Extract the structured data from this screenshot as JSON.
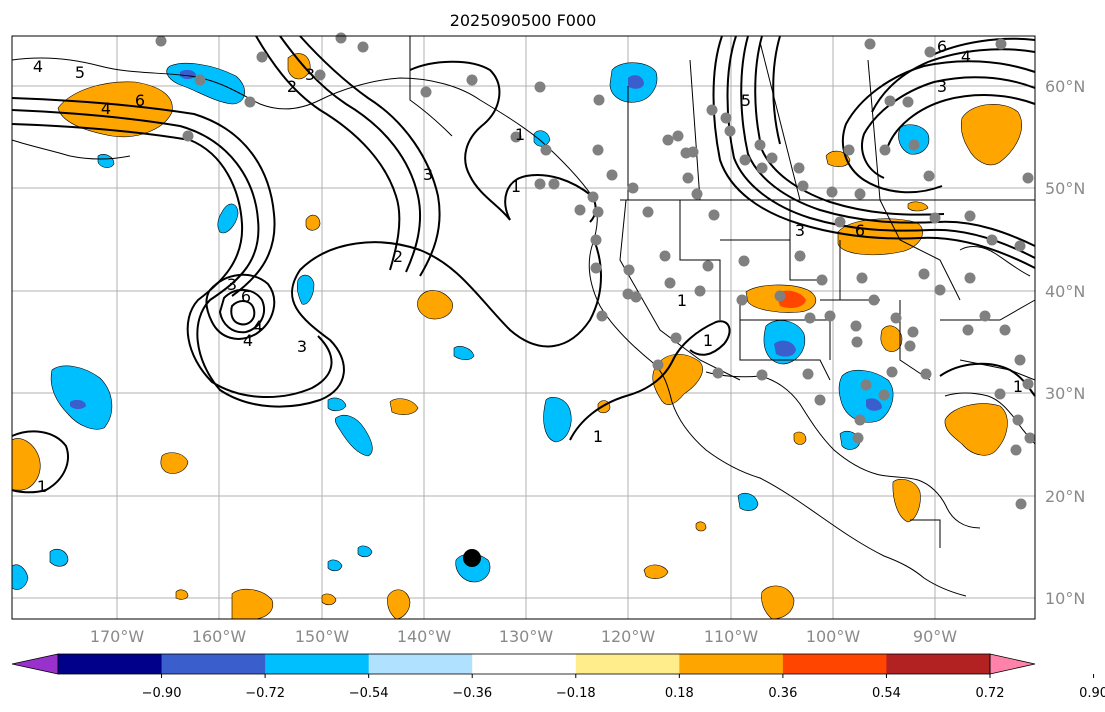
{
  "title": "2025090500 F000",
  "lon_ticks": [
    "170°W",
    "160°W",
    "150°W",
    "140°W",
    "130°W",
    "120°W",
    "110°W",
    "100°W",
    "90°W"
  ],
  "lat_ticks": [
    "60°N",
    "50°N",
    "40°N",
    "30°N",
    "20°N",
    "10°N"
  ],
  "colorbar": {
    "ticks": [
      "−0.90",
      "−0.72",
      "−0.54",
      "−0.36",
      "−0.18",
      "0.18",
      "0.36",
      "0.54",
      "0.72",
      "0.90"
    ],
    "colors": [
      "#9932cc",
      "#00008b",
      "#3a5fcd",
      "#00bfff",
      "#b0e2ff",
      "#ffffff",
      "#ffec8b",
      "#ffa500",
      "#ff4500",
      "#b22222",
      "#ff82ab"
    ]
  },
  "contour_labels": [
    "4",
    "5",
    "4",
    "6",
    "3",
    "3",
    "4",
    "2",
    "6",
    "4",
    "2",
    "3",
    "3",
    "1",
    "1",
    "6",
    "3",
    "5",
    "6",
    "4",
    "3",
    "1",
    "1",
    "1",
    "1",
    "1"
  ],
  "colors": {
    "positive": "#ffa500",
    "positive_strong": "#ff4500",
    "negative": "#00bfff",
    "negative_strong": "#3a5fcd",
    "station": "#808080",
    "grid": "#b0b0b0"
  }
}
